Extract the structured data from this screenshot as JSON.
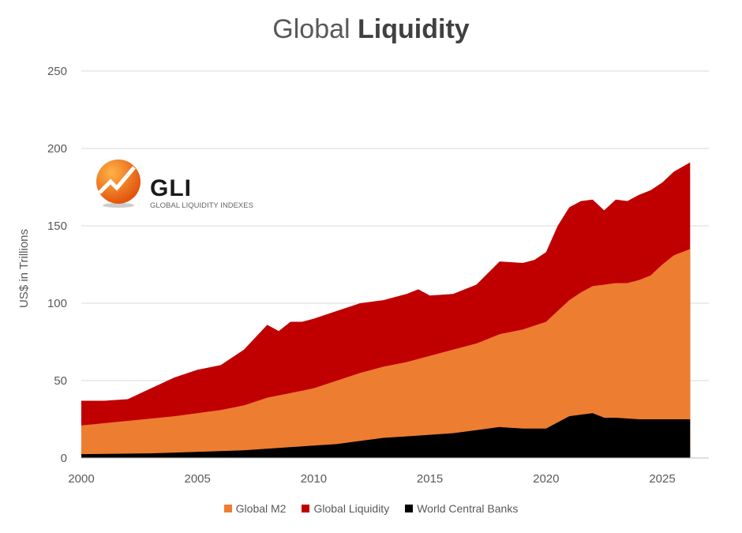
{
  "title": {
    "regular": "Global",
    "bold": "Liquidity"
  },
  "logo": {
    "mark": "GLI",
    "tagline": "GLOBAL LIQUIDITY INDEXES"
  },
  "chart_data": {
    "type": "area",
    "title": "Global Liquidity",
    "ylabel": "US$ in Trillions",
    "xlabel": "",
    "ylim": [
      0,
      250
    ],
    "xlim": [
      2000,
      2027
    ],
    "yticks": [
      0,
      50,
      100,
      150,
      200,
      250
    ],
    "xticks": [
      2000,
      2005,
      2010,
      2015,
      2020,
      2025
    ],
    "grid": "horizontal",
    "legend": "bottom",
    "series": [
      {
        "name": "Global Liquidity",
        "color": "#c00000",
        "x": [
          2000,
          2001,
          2002,
          2003,
          2004,
          2005,
          2006,
          2007,
          2008,
          2008.5,
          2009,
          2009.5,
          2010,
          2011,
          2012,
          2013,
          2014,
          2014.5,
          2015,
          2016,
          2017,
          2018,
          2019,
          2019.5,
          2020,
          2020.5,
          2021,
          2021.5,
          2022,
          2022.5,
          2023,
          2023.5,
          2024,
          2024.5,
          2025,
          2025.5,
          2026.2
        ],
        "y": [
          37,
          37,
          38,
          45,
          52,
          57,
          60,
          70,
          86,
          82,
          88,
          88,
          90,
          95,
          100,
          102,
          106,
          109,
          105,
          106,
          112,
          127,
          126,
          128,
          133,
          150,
          162,
          166,
          167,
          160,
          167,
          166,
          170,
          173,
          178,
          185,
          191
        ]
      },
      {
        "name": "Global M2",
        "color": "#ed7d31",
        "x": [
          2000,
          2002,
          2004,
          2005,
          2006,
          2007,
          2008,
          2009,
          2010,
          2011,
          2012,
          2013,
          2014,
          2015,
          2016,
          2017,
          2018,
          2019,
          2020,
          2020.5,
          2021,
          2021.5,
          2022,
          2022.5,
          2023,
          2023.5,
          2024,
          2024.5,
          2025,
          2025.5,
          2026.2
        ],
        "y": [
          21,
          24,
          27,
          29,
          31,
          34,
          39,
          42,
          45,
          50,
          55,
          59,
          62,
          66,
          70,
          74,
          80,
          83,
          88,
          95,
          102,
          107,
          111,
          112,
          113,
          113,
          115,
          118,
          125,
          131,
          135
        ]
      },
      {
        "name": "World  Central Banks",
        "color": "#000000",
        "x": [
          2000,
          2003,
          2005,
          2007,
          2008,
          2009,
          2010,
          2011,
          2012,
          2013,
          2014,
          2015,
          2016,
          2017,
          2018,
          2019,
          2020,
          2020.5,
          2021,
          2021.5,
          2022,
          2022.5,
          2023,
          2024,
          2025,
          2026.2
        ],
        "y": [
          2.5,
          3,
          4,
          5,
          6,
          7,
          8,
          9,
          11,
          13,
          14,
          15,
          16,
          18,
          20,
          19,
          19,
          23,
          27,
          28,
          29,
          26,
          26,
          25,
          25,
          25
        ]
      }
    ]
  },
  "legend": [
    {
      "label": "Global M2",
      "color": "#ed7d31"
    },
    {
      "label": "Global Liquidity",
      "color": "#c00000"
    },
    {
      "label": "World  Central Banks",
      "color": "#000000"
    }
  ]
}
